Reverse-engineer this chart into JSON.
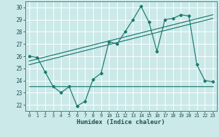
{
  "title": "",
  "xlabel": "Humidex (Indice chaleur)",
  "xlim": [
    -0.5,
    23.5
  ],
  "ylim": [
    21.5,
    30.5
  ],
  "yticks": [
    22,
    23,
    24,
    25,
    26,
    27,
    28,
    29,
    30
  ],
  "xticks": [
    0,
    1,
    2,
    3,
    4,
    5,
    6,
    7,
    8,
    9,
    10,
    11,
    12,
    13,
    14,
    15,
    16,
    17,
    18,
    19,
    20,
    21,
    22,
    23
  ],
  "background_color": "#cce9e9",
  "grid_color": "#ffffff",
  "line_color": "#1a7a6e",
  "series": [
    {
      "x": [
        0,
        1,
        2,
        3,
        4,
        5,
        6,
        7,
        8,
        9,
        10,
        11,
        12,
        13,
        14,
        15,
        16,
        17,
        18,
        19,
        20,
        21,
        22,
        23
      ],
      "y": [
        26.0,
        25.9,
        24.7,
        23.5,
        23.0,
        23.5,
        21.9,
        22.3,
        24.1,
        24.6,
        27.2,
        27.0,
        28.0,
        29.0,
        30.1,
        28.8,
        26.4,
        29.0,
        29.1,
        29.4,
        29.3,
        25.3,
        24.0,
        23.9
      ],
      "marker": "D",
      "markersize": 2.0,
      "linewidth": 0.9
    },
    {
      "x": [
        0,
        23
      ],
      "y": [
        25.6,
        29.4
      ],
      "marker": null,
      "linewidth": 0.9
    },
    {
      "x": [
        0,
        23
      ],
      "y": [
        25.3,
        29.1
      ],
      "marker": null,
      "linewidth": 0.9
    },
    {
      "x": [
        0,
        23
      ],
      "y": [
        23.55,
        23.55
      ],
      "marker": null,
      "linewidth": 0.9
    }
  ]
}
